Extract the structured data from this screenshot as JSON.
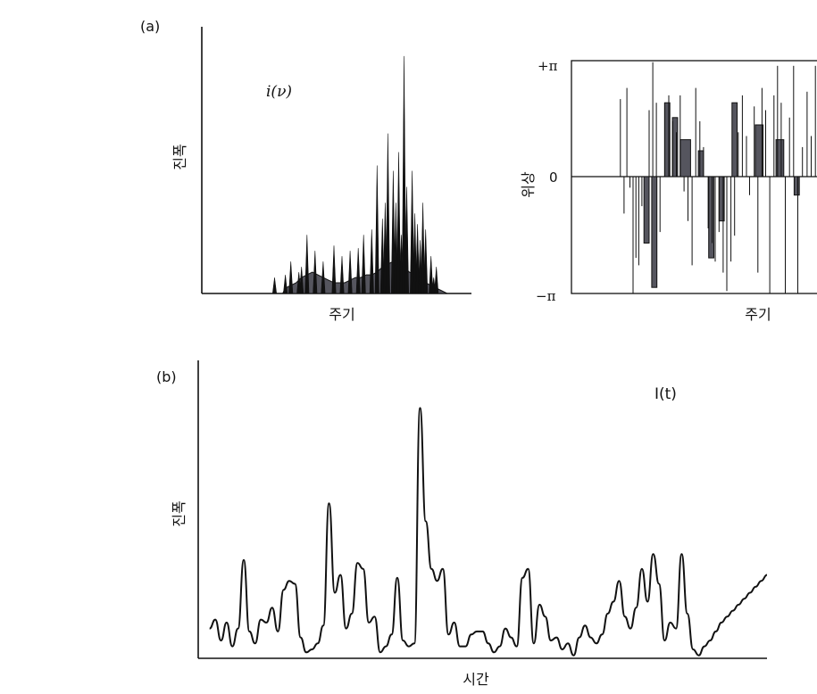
{
  "figure": {
    "panel_a_label": "(a)",
    "panel_b_label": "(b)",
    "colors": {
      "ink": "#111111",
      "fill": "#55555e",
      "background": "#ffffff"
    }
  },
  "chart_data": [
    {
      "type": "area",
      "panel": "a-left",
      "series_label": "i(ν)",
      "ylabel": "진폭",
      "xlabel": "주기",
      "xlim": [
        0,
        100
      ],
      "ylim": [
        0,
        100
      ],
      "axes": "left and bottom only, no ticks",
      "shaded_envelope": [
        [
          27,
          0
        ],
        [
          30,
          0
        ],
        [
          31,
          2
        ],
        [
          33,
          3
        ],
        [
          35,
          4
        ],
        [
          37,
          6
        ],
        [
          39,
          7
        ],
        [
          41,
          8
        ],
        [
          43,
          7
        ],
        [
          45,
          6
        ],
        [
          47,
          5
        ],
        [
          49,
          4
        ],
        [
          51,
          4
        ],
        [
          53,
          4
        ],
        [
          55,
          5
        ],
        [
          57,
          6
        ],
        [
          59,
          6
        ],
        [
          61,
          7
        ],
        [
          63,
          7
        ],
        [
          65,
          8
        ],
        [
          67,
          10
        ],
        [
          69,
          11
        ],
        [
          71,
          12
        ],
        [
          73,
          11
        ],
        [
          75,
          10
        ],
        [
          77,
          8
        ],
        [
          79,
          7
        ],
        [
          81,
          5
        ],
        [
          83,
          4
        ],
        [
          85,
          3
        ],
        [
          87,
          2
        ],
        [
          89,
          1
        ],
        [
          91,
          0
        ]
      ],
      "peaks": [
        [
          27,
          6
        ],
        [
          31,
          7
        ],
        [
          33,
          12
        ],
        [
          36,
          8
        ],
        [
          37,
          10
        ],
        [
          39,
          22
        ],
        [
          42,
          16
        ],
        [
          45,
          12
        ],
        [
          49,
          18
        ],
        [
          52,
          14
        ],
        [
          55,
          16
        ],
        [
          58,
          17
        ],
        [
          60,
          22
        ],
        [
          63,
          24
        ],
        [
          65,
          48
        ],
        [
          67,
          28
        ],
        [
          68,
          34
        ],
        [
          69,
          60
        ],
        [
          71,
          46
        ],
        [
          72,
          34
        ],
        [
          73,
          53
        ],
        [
          74,
          22
        ],
        [
          75,
          89
        ],
        [
          76,
          40
        ],
        [
          78,
          46
        ],
        [
          79,
          30
        ],
        [
          80,
          26
        ],
        [
          81,
          20
        ],
        [
          82,
          34
        ],
        [
          83,
          24
        ],
        [
          85,
          14
        ],
        [
          86,
          6
        ],
        [
          87,
          10
        ]
      ]
    },
    {
      "type": "bar",
      "panel": "a-right",
      "ylabel": "위상",
      "xlabel": "주기",
      "y_tick_labels": [
        "+π",
        "0",
        "−π"
      ],
      "ylim": [
        -3.14,
        3.14
      ],
      "values_phase": [
        [
          18.9,
          2.1
        ],
        [
          20.3,
          -1.0
        ],
        [
          21.4,
          2.4
        ],
        [
          22.6,
          -0.3
        ],
        [
          23.8,
          -3.2
        ],
        [
          24.9,
          -2.2
        ],
        [
          26.0,
          -2.4
        ],
        [
          27.2,
          -0.8
        ],
        [
          30.0,
          1.8
        ],
        [
          31.4,
          3.1
        ],
        [
          32.8,
          2.0
        ],
        [
          34.2,
          -1.5
        ],
        [
          36.0,
          2.0
        ],
        [
          37.6,
          2.2
        ],
        [
          39.1,
          1.5
        ],
        [
          40.5,
          1.2
        ],
        [
          42.0,
          2.2
        ],
        [
          43.5,
          -0.4
        ],
        [
          45.0,
          -1.2
        ],
        [
          46.6,
          -2.4
        ],
        [
          48.0,
          2.4
        ],
        [
          49.6,
          1.5
        ],
        [
          51.0,
          0.8
        ],
        [
          52.8,
          -1.4
        ],
        [
          54.3,
          -1.8
        ],
        [
          55.5,
          -2.3
        ],
        [
          57.0,
          -1.5
        ],
        [
          58.6,
          -2.6
        ],
        [
          60.0,
          -3.1
        ],
        [
          61.6,
          -2.3
        ],
        [
          63.0,
          -1.6
        ],
        [
          64.4,
          1.2
        ],
        [
          66.0,
          2.2
        ],
        [
          67.6,
          1.1
        ],
        [
          68.8,
          -0.5
        ],
        [
          70.6,
          1.9
        ],
        [
          72.0,
          -2.6
        ],
        [
          73.6,
          2.4
        ],
        [
          75.0,
          1.8
        ],
        [
          76.6,
          -3.2
        ],
        [
          78.2,
          2.2
        ],
        [
          79.6,
          3.0
        ],
        [
          81.0,
          2.0
        ],
        [
          82.6,
          -3.2
        ],
        [
          84.2,
          1.6
        ],
        [
          85.8,
          3.0
        ],
        [
          87.4,
          -3.2
        ],
        [
          89.2,
          0.8
        ],
        [
          91.0,
          2.3
        ],
        [
          92.6,
          1.1
        ],
        [
          94.2,
          3.0
        ],
        [
          95.8,
          1.7
        ],
        [
          97.4,
          -3.2
        ],
        [
          99.0,
          1.1
        ]
      ],
      "shaded_blocks": [
        [
          28,
          30,
          0,
          -1.8
        ],
        [
          31,
          33,
          0,
          -3.0
        ],
        [
          36,
          38,
          0,
          2.0
        ],
        [
          39,
          41,
          0,
          1.6
        ],
        [
          42,
          46,
          0,
          1.0
        ],
        [
          49,
          51,
          0,
          0.7
        ],
        [
          53,
          55,
          0,
          -2.2
        ],
        [
          57,
          59,
          0,
          -1.2
        ],
        [
          62,
          64,
          0,
          2.0
        ],
        [
          71,
          74,
          0,
          1.4
        ],
        [
          79,
          82,
          0,
          1.0
        ],
        [
          86,
          88,
          0,
          -0.5
        ]
      ]
    },
    {
      "type": "line",
      "panel": "b",
      "series_label": "I(t)",
      "ylabel": "진폭",
      "xlabel": "시간",
      "xlim": [
        0,
        100
      ],
      "ylim": [
        0,
        100
      ],
      "axes": "left and bottom only, no ticks",
      "x": [
        2,
        3,
        4,
        5,
        6,
        7,
        8,
        9,
        10,
        11,
        12,
        13,
        14,
        15,
        16,
        17,
        18,
        19,
        20,
        21,
        22,
        23,
        24,
        25,
        26,
        27,
        28,
        29,
        30,
        31,
        32,
        33,
        34,
        35,
        36,
        37,
        38,
        39,
        40,
        41,
        42,
        43,
        44,
        45,
        46,
        47,
        48,
        49,
        50,
        51,
        52,
        53,
        54,
        55,
        56,
        57,
        58,
        59,
        60,
        61,
        62,
        63,
        64,
        65,
        66,
        67,
        68,
        69,
        70,
        71,
        72,
        73,
        74,
        75,
        76,
        77,
        78,
        79,
        80,
        81,
        82,
        83,
        84,
        85,
        86,
        87,
        88,
        89,
        90,
        91,
        92,
        93,
        94,
        95,
        96,
        97,
        98,
        99,
        100
      ],
      "y": [
        10,
        13,
        6,
        12,
        4,
        10,
        33,
        9,
        5,
        13,
        12,
        17,
        9,
        23,
        26,
        25,
        7,
        2,
        3,
        5,
        11,
        52,
        22,
        28,
        10,
        15,
        32,
        30,
        12,
        14,
        2,
        4,
        8,
        27,
        6,
        4,
        5,
        84,
        46,
        30,
        26,
        30,
        8,
        12,
        4,
        4,
        8,
        9,
        9,
        5,
        2,
        4,
        10,
        7,
        4,
        27,
        30,
        5,
        18,
        14,
        6,
        7,
        3,
        5,
        1,
        7,
        11,
        7,
        5,
        8,
        15,
        19,
        26,
        14,
        10,
        17,
        30,
        19,
        35,
        25,
        6,
        12,
        10,
        35,
        15,
        3,
        1,
        4,
        6,
        9,
        12,
        14,
        16,
        18,
        20,
        22,
        24,
        26,
        28
      ]
    }
  ]
}
